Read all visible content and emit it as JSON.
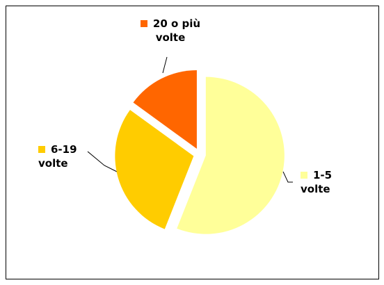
{
  "chart_data": {
    "type": "pie",
    "categories": [
      "1-5 volte",
      "6-19 volte",
      "20 o più volte"
    ],
    "values": [
      56,
      29,
      15
    ],
    "colors": [
      "#ffff99",
      "#ffcc00",
      "#ff6600"
    ]
  }
}
